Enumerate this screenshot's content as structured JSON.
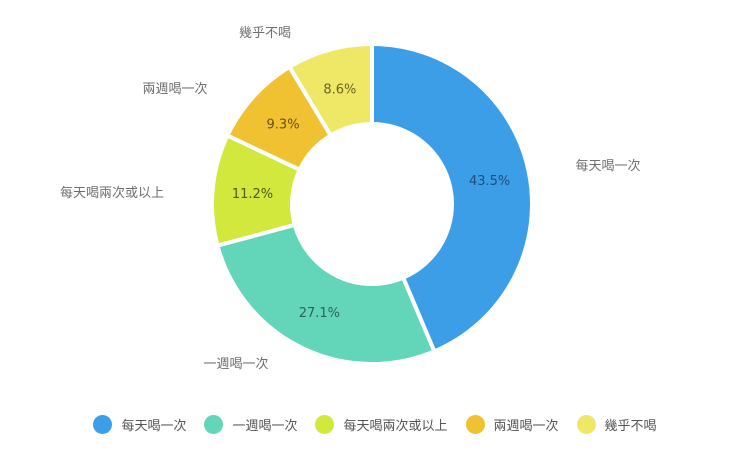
{
  "chart_data": {
    "type": "pie",
    "variant": "donut",
    "title": "",
    "categories": [
      "每天喝一次",
      "一週喝一次",
      "每天喝兩次或以上",
      "兩週喝一次",
      "幾乎不喝"
    ],
    "values": [
      43.5,
      27.1,
      11.2,
      9.3,
      8.6
    ],
    "value_labels": [
      "43.5%",
      "27.1%",
      "11.2%",
      "9.3%",
      "8.6%"
    ],
    "colors": [
      "#3d9ee8",
      "#63d5b8",
      "#d2e83c",
      "#f0c232",
      "#eee866"
    ],
    "start_angle": "12 o'clock",
    "direction": "clockwise",
    "legend_position": "bottom"
  },
  "legend": [
    {
      "label": "每天喝一次",
      "color": "#3d9ee8"
    },
    {
      "label": "一週喝一次",
      "color": "#63d5b8"
    },
    {
      "label": "每天喝兩次或以上",
      "color": "#d2e83c"
    },
    {
      "label": "兩週喝一次",
      "color": "#f0c232"
    },
    {
      "label": "幾乎不喝",
      "color": "#eee866"
    }
  ]
}
